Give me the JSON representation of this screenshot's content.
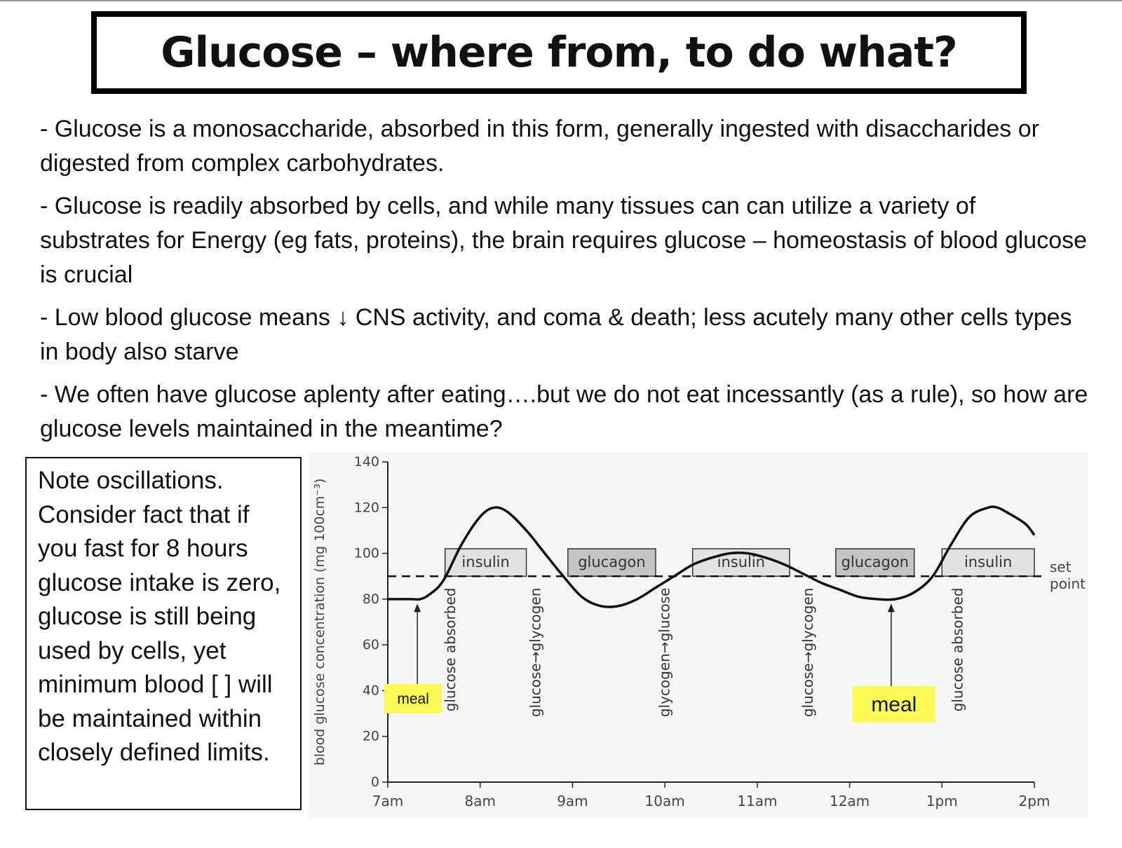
{
  "slide": {
    "title": "Glucose – where from, to do what?",
    "bullets": [
      "- Glucose is a monosaccharide, absorbed in this form, generally ingested with disaccharides or digested from complex carbohydrates.",
      "- Glucose is readily absorbed by cells, and while many tissues can can utilize a variety of substrates for Energy (eg fats, proteins), the brain requires glucose – homeostasis of blood glucose is crucial",
      "- Low blood glucose means ↓ CNS activity, and coma & death; less acutely many other cells types in body also starve",
      "- We often have glucose aplenty after eating….but we do not eat incessantly (as a rule), so how are glucose levels maintained in the meantime?"
    ],
    "note": "Note oscillations. Consider fact that if you fast for 8 hours glucose intake is zero, glucose is still being used by cells, yet minimum blood [ ] will be maintained within closely defined limits."
  },
  "chart_data": {
    "type": "line",
    "ylabel": "blood glucose concentration (mg 100cm⁻³)",
    "xlabel": "",
    "x_ticks": [
      "7am",
      "8am",
      "9am",
      "10am",
      "11am",
      "12am",
      "1pm",
      "2pm"
    ],
    "y_ticks": [
      0,
      20,
      40,
      60,
      80,
      100,
      120,
      140
    ],
    "ylim": [
      0,
      140
    ],
    "grid": false,
    "series": [
      {
        "x": [
          7.0,
          7.25,
          7.35,
          7.45,
          7.6,
          7.8,
          8.0,
          8.15,
          8.3,
          8.5,
          8.7,
          8.9,
          9.1,
          9.3,
          9.5,
          9.7,
          9.9,
          10.1,
          10.3,
          10.5,
          10.7,
          10.9,
          11.1,
          11.3,
          11.5,
          11.7,
          11.9,
          12.1,
          12.3,
          12.5,
          12.7,
          12.9,
          13.1,
          13.3,
          13.5,
          13.6,
          13.7,
          13.9,
          14.0
        ],
        "y": [
          80,
          80,
          80,
          82,
          88,
          104,
          116,
          120,
          118,
          110,
          100,
          90,
          81,
          77,
          77,
          80,
          85,
          90,
          95,
          98,
          100,
          100,
          98,
          95,
          91,
          87,
          84,
          81,
          80,
          80,
          83,
          90,
          104,
          116,
          120,
          120,
          118,
          113,
          108
        ]
      }
    ],
    "set_point": 90,
    "set_point_label": "set point",
    "hormone_boxes": [
      {
        "label": "insulin",
        "x0": 7.62,
        "x1": 8.5
      },
      {
        "label": "glucagon",
        "x0": 8.95,
        "x1": 9.9
      },
      {
        "label": "insulin",
        "x0": 10.3,
        "x1": 11.35
      },
      {
        "label": "glucagon",
        "x0": 11.85,
        "x1": 12.7
      },
      {
        "label": "insulin",
        "x0": 13.0,
        "x1": 14.0
      }
    ],
    "annotations": [
      {
        "label": "glucose absorbed",
        "x": 7.73
      },
      {
        "label": "glucose→glycogen",
        "x": 8.65
      },
      {
        "label": "glycogen→glucose",
        "x": 10.05
      },
      {
        "label": "glucose→glycogen",
        "x": 11.6
      },
      {
        "label": "glucose absorbed",
        "x": 13.22
      }
    ],
    "meals": [
      {
        "label": "meal",
        "x": 7.32
      },
      {
        "label": "meal",
        "x": 12.45
      }
    ]
  }
}
